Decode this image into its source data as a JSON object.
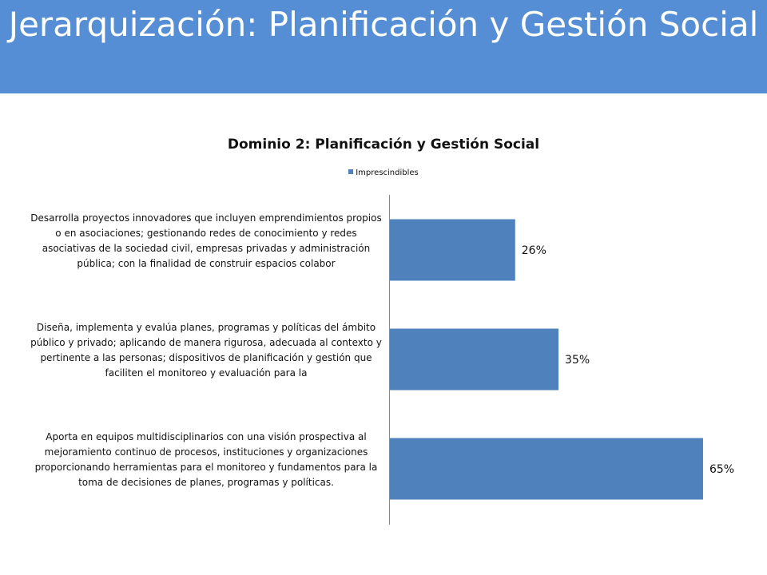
{
  "header": {
    "title": "Jerarquización: Planificación y Gestión Social"
  },
  "colors": {
    "header_bg": "#558ed5",
    "bar": "#4f81bd"
  },
  "chart_data": {
    "type": "bar",
    "orientation": "horizontal",
    "title": "Dominio 2: Planificación y Gestión Social",
    "legend_position": "top",
    "grid": false,
    "xlim": [
      0,
      100
    ],
    "categories": [
      "Desarrolla proyectos innovadores que incluyen emprendimientos propios o en asociaciones; gestionando redes de conocimiento y redes asociativas de la sociedad civil, empresas privadas y administración pública; con la finalidad de construir espacios colabor",
      "Diseña, implementa y evalúa planes, programas y políticas del ámbito público y privado; aplicando de manera rigurosa, adecuada al contexto y pertinente a las personas; dispositivos de planificación y gestión que faciliten el monitoreo y evaluación para la",
      "Aporta en equipos multidisciplinarios con una visión prospectiva al mejoramiento continuo de procesos, instituciones y organizaciones proporcionando herramientas para el monitoreo y fundamentos para la toma de decisiones de planes, programas y políticas."
    ],
    "series": [
      {
        "name": "Imprescindibles",
        "values": [
          26,
          35,
          65
        ],
        "labels": [
          "26%",
          "35%",
          "65%"
        ]
      }
    ]
  }
}
